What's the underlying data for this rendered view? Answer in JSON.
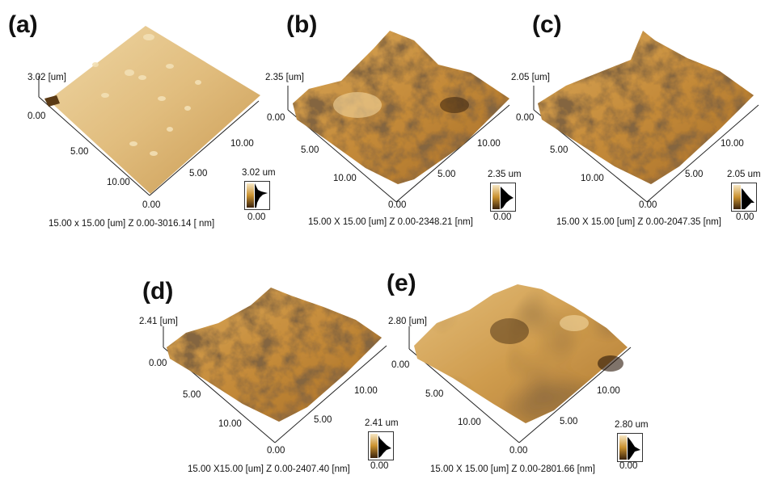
{
  "panels": [
    {
      "id": "a",
      "label": "(a)",
      "z_axis_label": "3.02 [um]",
      "origin_label": "0.00",
      "left_ticks": [
        "5.00",
        "10.00"
      ],
      "front_label": "0.00",
      "right_ticks": [
        "5.00",
        "10.00"
      ],
      "scale_max": "3.02 um",
      "scale_min": "0.00",
      "caption": "15.00 x 15.00 [um]  Z 0.00-3016.14 [ nm]"
    },
    {
      "id": "b",
      "label": "(b)",
      "z_axis_label": "2.35 [um]",
      "origin_label": "0.00",
      "left_ticks": [
        "5.00",
        "10.00"
      ],
      "front_label": "0.00",
      "right_ticks": [
        "5.00",
        "10.00"
      ],
      "scale_max": "2.35 um",
      "scale_min": "0.00",
      "caption": "15.00 X 15.00 [um] Z 0.00-2348.21 [nm]"
    },
    {
      "id": "c",
      "label": "(c)",
      "z_axis_label": "2.05 [um]",
      "origin_label": "0.00",
      "left_ticks": [
        "5.00",
        "10.00"
      ],
      "front_label": "0.00",
      "right_ticks": [
        "5.00",
        "10.00"
      ],
      "scale_max": "2.05 um",
      "scale_min": "0.00",
      "caption": "15.00 X 15.00 [um] Z 0.00-2047.35 [nm]"
    },
    {
      "id": "d",
      "label": "(d)",
      "z_axis_label": "2.41 [um]",
      "origin_label": "0.00",
      "left_ticks": [
        "5.00",
        "10.00"
      ],
      "front_label": "0.00",
      "right_ticks": [
        "5.00",
        "10.00"
      ],
      "scale_max": "2.41 um",
      "scale_min": "0.00",
      "caption": "15.00 X15.00 [um] Z 0.00-2407.40 [nm]"
    },
    {
      "id": "e",
      "label": "(e)",
      "z_axis_label": "2.80 [um]",
      "origin_label": "0.00",
      "left_ticks": [
        "5.00",
        "10.00"
      ],
      "front_label": "0.00",
      "right_ticks": [
        "5.00",
        "10.00"
      ],
      "scale_max": "2.80 um",
      "scale_min": "0.00",
      "caption": "15.00 X 15.00 [um] Z 0.00-2801.66 [nm]"
    }
  ],
  "colors": {
    "surface_light": "#e8c98d",
    "surface_mid": "#c08a3c",
    "surface_dark": "#3a220c"
  }
}
